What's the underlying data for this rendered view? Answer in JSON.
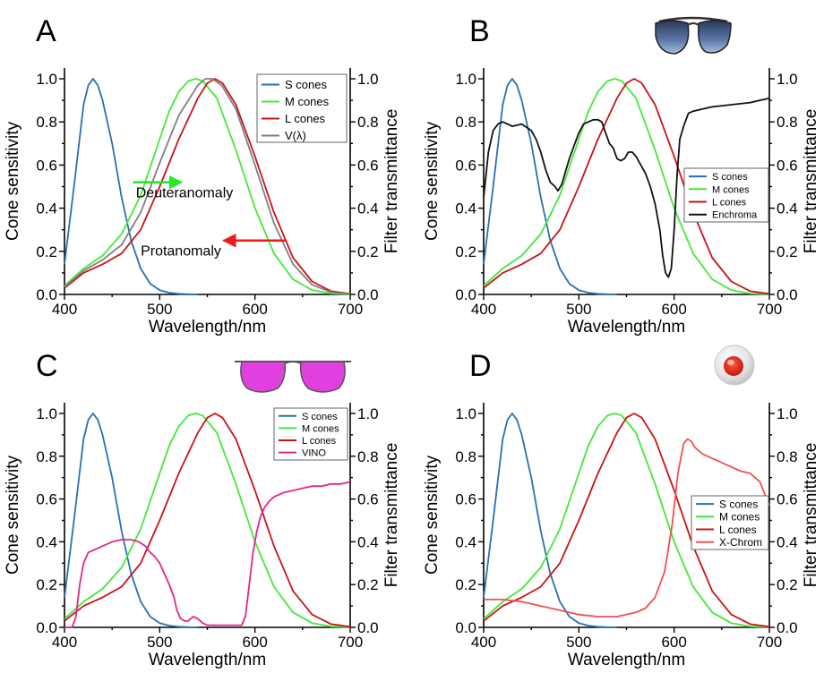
{
  "colors": {
    "S": "#2a6fb5",
    "M": "#44e83a",
    "L": "#c8141a",
    "V": "#7f7f7f",
    "Enchroma": "#111111",
    "VINO": "#e0288a",
    "XChrom": "#f2504e",
    "arrow_green": "#29e829",
    "arrow_red": "#ee1a1a"
  },
  "chart_data": [
    {
      "type": "line",
      "letter": "A",
      "xlabel": "Wavelength/nm",
      "ylabel": "Cone sensitivity",
      "y2label": "Filter transmittance",
      "xlim": [
        400,
        700
      ],
      "ylim": [
        0,
        1.05
      ],
      "y2lim": [
        0,
        1.05
      ],
      "xticks": [
        "400",
        "500",
        "600",
        "700"
      ],
      "yticks": [
        "0.0",
        "0.2",
        "0.4",
        "0.6",
        "0.8",
        "1.0"
      ],
      "legend": {
        "position": "top-right",
        "entries": [
          "S cones",
          "M cones",
          "L cones",
          "V(λ)"
        ]
      },
      "series": [
        {
          "name": "S cones",
          "color": "S",
          "x": [
            400,
            410,
            420,
            425,
            430,
            435,
            440,
            450,
            460,
            470,
            480,
            490,
            500,
            510,
            520,
            530,
            540
          ],
          "y": [
            0.14,
            0.5,
            0.88,
            0.97,
            1.0,
            0.97,
            0.9,
            0.7,
            0.45,
            0.25,
            0.12,
            0.05,
            0.02,
            0.008,
            0.003,
            0.001,
            0
          ]
        },
        {
          "name": "M cones",
          "color": "M",
          "x": [
            400,
            420,
            440,
            460,
            480,
            500,
            510,
            520,
            530,
            538,
            545,
            560,
            580,
            600,
            620,
            640,
            660,
            680,
            700
          ],
          "y": [
            0.04,
            0.12,
            0.18,
            0.28,
            0.46,
            0.72,
            0.85,
            0.94,
            0.99,
            1.0,
            0.99,
            0.91,
            0.67,
            0.4,
            0.19,
            0.07,
            0.02,
            0.004,
            0.001
          ]
        },
        {
          "name": "L cones",
          "color": "L",
          "x": [
            400,
            420,
            440,
            460,
            480,
            500,
            520,
            540,
            550,
            558,
            566,
            580,
            600,
            620,
            640,
            660,
            680,
            700
          ],
          "y": [
            0.03,
            0.1,
            0.14,
            0.19,
            0.3,
            0.5,
            0.72,
            0.91,
            0.98,
            1.0,
            0.98,
            0.88,
            0.64,
            0.38,
            0.17,
            0.06,
            0.015,
            0.003
          ]
        },
        {
          "name": "V(λ)",
          "color": "V",
          "x": [
            400,
            420,
            440,
            460,
            480,
            500,
            520,
            540,
            548,
            555,
            565,
            580,
            600,
            620,
            640,
            660,
            680,
            700
          ],
          "y": [
            0.035,
            0.11,
            0.16,
            0.23,
            0.38,
            0.61,
            0.83,
            0.97,
            1.0,
            1.0,
            0.97,
            0.86,
            0.6,
            0.33,
            0.14,
            0.045,
            0.01,
            0.002
          ]
        }
      ],
      "annotations": [
        {
          "text": "Deuteranomaly",
          "arrow": "green",
          "x_from": 472,
          "x_to": 523,
          "y_arrow": 0.52,
          "x_text": 475,
          "y_text": 0.45
        },
        {
          "text": "Protanomaly",
          "arrow": "red",
          "x_from": 632,
          "x_to": 567,
          "y_arrow": 0.25,
          "x_text": 480,
          "y_text": 0.18
        }
      ]
    },
    {
      "type": "line",
      "letter": "B",
      "icon": "aviator-sunglasses-icon",
      "xlabel": "Wavelength/nm",
      "ylabel": "Cone sensitivity",
      "y2label": "Filter transmittance",
      "xlim": [
        400,
        700
      ],
      "ylim": [
        0,
        1.05
      ],
      "y2lim": [
        0,
        1.05
      ],
      "xticks": [
        "400",
        "500",
        "600",
        "700"
      ],
      "yticks": [
        "0.0",
        "0.2",
        "0.4",
        "0.6",
        "0.8",
        "1.0"
      ],
      "legend": {
        "position": "middle-right",
        "entries": [
          "S cones",
          "M cones",
          "L cones",
          "Enchroma"
        ]
      },
      "series": [
        {
          "name": "S cones",
          "color": "S",
          "x": [
            400,
            410,
            420,
            425,
            430,
            435,
            440,
            450,
            460,
            470,
            480,
            490,
            500,
            510,
            520,
            530,
            540
          ],
          "y": [
            0.14,
            0.5,
            0.88,
            0.97,
            1.0,
            0.97,
            0.9,
            0.7,
            0.45,
            0.25,
            0.12,
            0.05,
            0.02,
            0.008,
            0.003,
            0.001,
            0
          ]
        },
        {
          "name": "M cones",
          "color": "M",
          "x": [
            400,
            420,
            440,
            460,
            480,
            500,
            510,
            520,
            530,
            538,
            545,
            560,
            580,
            600,
            620,
            640,
            660,
            680,
            700
          ],
          "y": [
            0.04,
            0.12,
            0.18,
            0.28,
            0.46,
            0.72,
            0.85,
            0.94,
            0.99,
            1.0,
            0.99,
            0.91,
            0.67,
            0.4,
            0.19,
            0.07,
            0.02,
            0.004,
            0.001
          ]
        },
        {
          "name": "L cones",
          "color": "L",
          "x": [
            400,
            420,
            440,
            460,
            480,
            500,
            520,
            540,
            550,
            558,
            566,
            580,
            600,
            620,
            640,
            660,
            680,
            700
          ],
          "y": [
            0.03,
            0.1,
            0.14,
            0.19,
            0.3,
            0.5,
            0.72,
            0.91,
            0.98,
            1.0,
            0.98,
            0.88,
            0.64,
            0.38,
            0.17,
            0.06,
            0.015,
            0.003
          ]
        },
        {
          "name": "Enchroma",
          "color": "Enchroma",
          "x": [
            400,
            405,
            410,
            415,
            420,
            430,
            440,
            450,
            455,
            460,
            465,
            470,
            475,
            478,
            482,
            486,
            490,
            495,
            500,
            505,
            510,
            515,
            520,
            524,
            528,
            532,
            536,
            540,
            544,
            548,
            552,
            556,
            560,
            565,
            570,
            575,
            580,
            585,
            588,
            591,
            594,
            597,
            600,
            603,
            606,
            610,
            615,
            620,
            630,
            640,
            660,
            680,
            690,
            700
          ],
          "y": [
            0.45,
            0.66,
            0.76,
            0.79,
            0.8,
            0.78,
            0.79,
            0.76,
            0.72,
            0.66,
            0.58,
            0.52,
            0.5,
            0.48,
            0.51,
            0.57,
            0.63,
            0.69,
            0.75,
            0.79,
            0.8,
            0.81,
            0.81,
            0.8,
            0.75,
            0.7,
            0.68,
            0.63,
            0.62,
            0.63,
            0.66,
            0.66,
            0.64,
            0.6,
            0.56,
            0.5,
            0.42,
            0.3,
            0.18,
            0.1,
            0.08,
            0.12,
            0.3,
            0.55,
            0.72,
            0.78,
            0.84,
            0.85,
            0.86,
            0.87,
            0.88,
            0.89,
            0.9,
            0.91
          ]
        }
      ]
    },
    {
      "type": "line",
      "letter": "C",
      "icon": "pink-glasses-icon",
      "xlabel": "Wavelength/nm",
      "ylabel": "Cone sensitivity",
      "y2label": "Filter transmittance",
      "xlim": [
        400,
        700
      ],
      "ylim": [
        0,
        1.05
      ],
      "y2lim": [
        0,
        1.05
      ],
      "xticks": [
        "400",
        "500",
        "600",
        "700"
      ],
      "yticks": [
        "0.0",
        "0.2",
        "0.4",
        "0.6",
        "0.8",
        "1.0"
      ],
      "legend": {
        "position": "top-right",
        "entries": [
          "S cones",
          "M cones",
          "L cones",
          "VINO"
        ]
      },
      "series": [
        {
          "name": "S cones",
          "color": "S",
          "x": [
            400,
            410,
            420,
            425,
            430,
            435,
            440,
            450,
            460,
            470,
            480,
            490,
            500,
            510,
            520,
            530,
            540
          ],
          "y": [
            0.14,
            0.5,
            0.88,
            0.97,
            1.0,
            0.97,
            0.9,
            0.7,
            0.45,
            0.25,
            0.12,
            0.05,
            0.02,
            0.008,
            0.003,
            0.001,
            0
          ]
        },
        {
          "name": "M cones",
          "color": "M",
          "x": [
            400,
            420,
            440,
            460,
            480,
            500,
            510,
            520,
            530,
            538,
            545,
            560,
            580,
            600,
            620,
            640,
            660,
            680,
            700
          ],
          "y": [
            0.04,
            0.12,
            0.18,
            0.28,
            0.46,
            0.72,
            0.85,
            0.94,
            0.99,
            1.0,
            0.99,
            0.91,
            0.67,
            0.4,
            0.19,
            0.07,
            0.02,
            0.004,
            0.001
          ]
        },
        {
          "name": "L cones",
          "color": "L",
          "x": [
            400,
            420,
            440,
            460,
            480,
            500,
            520,
            540,
            550,
            558,
            566,
            580,
            600,
            620,
            640,
            660,
            680,
            700
          ],
          "y": [
            0.03,
            0.1,
            0.14,
            0.19,
            0.3,
            0.5,
            0.72,
            0.91,
            0.98,
            1.0,
            0.98,
            0.88,
            0.64,
            0.38,
            0.17,
            0.06,
            0.015,
            0.003
          ]
        },
        {
          "name": "VINO",
          "color": "VINO",
          "x": [
            400,
            408,
            412,
            416,
            420,
            425,
            430,
            440,
            450,
            460,
            470,
            478,
            485,
            490,
            495,
            500,
            505,
            510,
            515,
            518,
            522,
            526,
            530,
            535,
            540,
            545,
            550,
            560,
            570,
            580,
            586,
            590,
            594,
            598,
            602,
            606,
            610,
            615,
            620,
            630,
            640,
            650,
            660,
            670,
            680,
            690,
            700
          ],
          "y": [
            0.0,
            0.0,
            0.05,
            0.2,
            0.3,
            0.35,
            0.36,
            0.38,
            0.4,
            0.41,
            0.41,
            0.4,
            0.38,
            0.35,
            0.33,
            0.3,
            0.25,
            0.2,
            0.14,
            0.08,
            0.04,
            0.03,
            0.03,
            0.05,
            0.04,
            0.02,
            0.01,
            0.01,
            0.01,
            0.01,
            0.01,
            0.05,
            0.2,
            0.35,
            0.45,
            0.52,
            0.56,
            0.59,
            0.61,
            0.63,
            0.64,
            0.65,
            0.66,
            0.66,
            0.67,
            0.67,
            0.68
          ]
        }
      ]
    },
    {
      "type": "line",
      "letter": "D",
      "icon": "red-contact-lens-icon",
      "xlabel": "Wavelength/nm",
      "ylabel": "Cone sensitivity",
      "y2label": "Filter transmittance",
      "xlim": [
        400,
        700
      ],
      "ylim": [
        0,
        1.05
      ],
      "y2lim": [
        0,
        1.05
      ],
      "xticks": [
        "400",
        "500",
        "600",
        "700"
      ],
      "yticks": [
        "0.0",
        "0.2",
        "0.4",
        "0.6",
        "0.8",
        "1.0"
      ],
      "legend": {
        "position": "middle-right",
        "entries": [
          "S cones",
          "M cones",
          "L cones",
          "X-Chrom"
        ]
      },
      "series": [
        {
          "name": "S cones",
          "color": "S",
          "x": [
            400,
            410,
            420,
            425,
            430,
            435,
            440,
            450,
            460,
            470,
            480,
            490,
            500,
            510,
            520,
            530,
            540
          ],
          "y": [
            0.14,
            0.5,
            0.88,
            0.97,
            1.0,
            0.97,
            0.9,
            0.7,
            0.45,
            0.25,
            0.12,
            0.05,
            0.02,
            0.008,
            0.003,
            0.001,
            0
          ]
        },
        {
          "name": "M cones",
          "color": "M",
          "x": [
            400,
            420,
            440,
            460,
            480,
            500,
            510,
            520,
            530,
            538,
            545,
            560,
            580,
            600,
            620,
            640,
            660,
            680,
            700
          ],
          "y": [
            0.04,
            0.12,
            0.18,
            0.28,
            0.46,
            0.72,
            0.85,
            0.94,
            0.99,
            1.0,
            0.99,
            0.91,
            0.67,
            0.4,
            0.19,
            0.07,
            0.02,
            0.004,
            0.001
          ]
        },
        {
          "name": "L cones",
          "color": "L",
          "x": [
            400,
            420,
            440,
            460,
            480,
            500,
            520,
            540,
            550,
            558,
            566,
            580,
            600,
            620,
            640,
            660,
            680,
            700
          ],
          "y": [
            0.03,
            0.1,
            0.14,
            0.19,
            0.3,
            0.5,
            0.72,
            0.91,
            0.98,
            1.0,
            0.98,
            0.88,
            0.64,
            0.38,
            0.17,
            0.06,
            0.015,
            0.003
          ]
        },
        {
          "name": "X-Chrom",
          "color": "XChrom",
          "x": [
            400,
            420,
            440,
            460,
            480,
            500,
            520,
            540,
            560,
            570,
            580,
            590,
            598,
            604,
            610,
            614,
            618,
            622,
            630,
            640,
            650,
            660,
            670,
            680,
            690,
            700
          ],
          "y": [
            0.13,
            0.13,
            0.12,
            0.1,
            0.08,
            0.06,
            0.05,
            0.05,
            0.07,
            0.09,
            0.14,
            0.26,
            0.48,
            0.72,
            0.86,
            0.88,
            0.87,
            0.84,
            0.81,
            0.79,
            0.77,
            0.75,
            0.73,
            0.72,
            0.68,
            0.57
          ]
        }
      ]
    }
  ]
}
